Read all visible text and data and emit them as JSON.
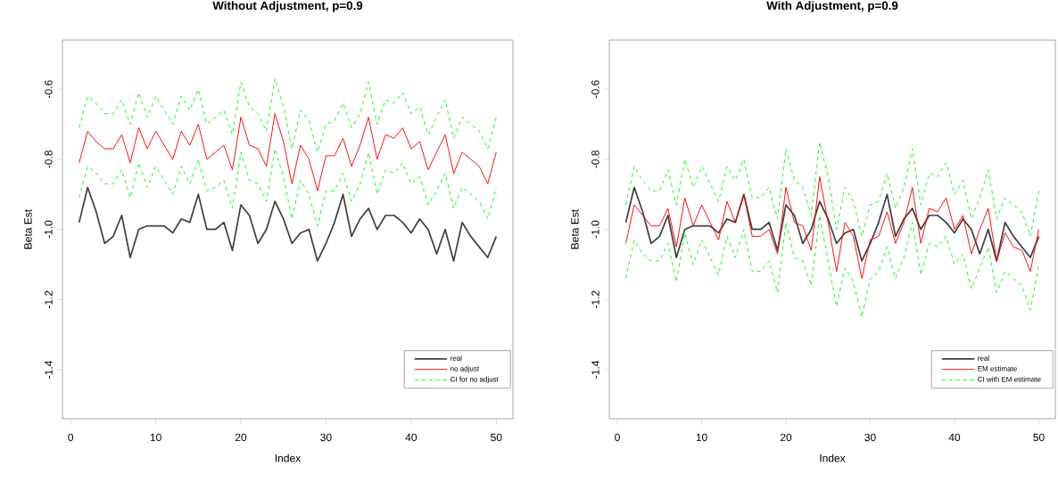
{
  "chart_data": [
    {
      "type": "line",
      "title": "Without Adjustment, p=0.9",
      "xlabel": "Index",
      "ylabel": "Beta Est",
      "x": [
        1,
        2,
        3,
        4,
        5,
        6,
        7,
        8,
        9,
        10,
        11,
        12,
        13,
        14,
        15,
        16,
        17,
        18,
        19,
        20,
        21,
        22,
        23,
        24,
        25,
        26,
        27,
        28,
        29,
        30,
        31,
        32,
        33,
        34,
        35,
        36,
        37,
        38,
        39,
        40,
        41,
        42,
        43,
        44,
        45,
        46,
        47,
        48,
        49,
        50
      ],
      "xlim": [
        -0.96,
        51.96
      ],
      "ylim": [
        -1.54,
        -0.46
      ],
      "xticks": [
        0,
        10,
        20,
        30,
        40,
        50
      ],
      "yticks": [
        {
          "value": -1.4,
          "label": "-1.4"
        },
        {
          "value": -1.2,
          "label": "-1.2"
        },
        {
          "value": -1.0,
          "label": "-1.0"
        },
        {
          "value": -0.8,
          "label": "-0.8"
        },
        {
          "value": -0.6,
          "label": "-0.6"
        }
      ],
      "legend": "bottom right",
      "series": [
        {
          "name": "real",
          "color": "#404040",
          "line_style": "solid",
          "values": [
            -0.98,
            -0.88,
            -0.95,
            -1.04,
            -1.02,
            -0.96,
            -1.08,
            -1.0,
            -0.99,
            -0.99,
            -0.99,
            -1.01,
            -0.97,
            -0.98,
            -0.9,
            -1.0,
            -1.0,
            -0.98,
            -1.06,
            -0.93,
            -0.96,
            -1.04,
            -1.0,
            -0.92,
            -0.97,
            -1.04,
            -1.01,
            -1.0,
            -1.09,
            -1.04,
            -0.98,
            -0.9,
            -1.02,
            -0.97,
            -0.94,
            -1.0,
            -0.96,
            -0.96,
            -0.98,
            -1.01,
            -0.97,
            -1.0,
            -1.07,
            -1.0,
            -1.09,
            -0.98,
            -1.02,
            -1.05,
            -1.08,
            -1.02
          ]
        },
        {
          "name": "no adjust",
          "color": "#ff0000",
          "line_style": "solid",
          "values": [
            -0.81,
            -0.72,
            -0.75,
            -0.77,
            -0.77,
            -0.73,
            -0.81,
            -0.71,
            -0.77,
            -0.72,
            -0.76,
            -0.8,
            -0.72,
            -0.76,
            -0.7,
            -0.8,
            -0.78,
            -0.76,
            -0.83,
            -0.68,
            -0.76,
            -0.77,
            -0.82,
            -0.67,
            -0.75,
            -0.87,
            -0.76,
            -0.8,
            -0.89,
            -0.79,
            -0.79,
            -0.74,
            -0.82,
            -0.76,
            -0.68,
            -0.8,
            -0.73,
            -0.74,
            -0.71,
            -0.77,
            -0.75,
            -0.83,
            -0.78,
            -0.73,
            -0.84,
            -0.78,
            -0.8,
            -0.82,
            -0.87,
            -0.78
          ]
        },
        {
          "name": "CI for no adjust",
          "color": "#00ff00",
          "line_style": "dashed",
          "values": [
            -0.71,
            -0.62,
            -0.64,
            -0.67,
            -0.67,
            -0.63,
            -0.7,
            -0.61,
            -0.68,
            -0.62,
            -0.66,
            -0.7,
            -0.62,
            -0.66,
            -0.6,
            -0.7,
            -0.68,
            -0.66,
            -0.73,
            -0.58,
            -0.65,
            -0.67,
            -0.72,
            -0.57,
            -0.65,
            -0.77,
            -0.66,
            -0.69,
            -0.78,
            -0.7,
            -0.69,
            -0.64,
            -0.71,
            -0.67,
            -0.58,
            -0.7,
            -0.63,
            -0.64,
            -0.61,
            -0.67,
            -0.65,
            -0.73,
            -0.68,
            -0.63,
            -0.74,
            -0.68,
            -0.7,
            -0.72,
            -0.77,
            -0.68
          ]
        },
        {
          "color": "#00ff00",
          "line_style": "dashed",
          "values": [
            -0.91,
            -0.82,
            -0.84,
            -0.87,
            -0.87,
            -0.83,
            -0.91,
            -0.81,
            -0.88,
            -0.82,
            -0.86,
            -0.9,
            -0.82,
            -0.87,
            -0.8,
            -0.89,
            -0.88,
            -0.86,
            -0.94,
            -0.78,
            -0.86,
            -0.87,
            -0.92,
            -0.77,
            -0.85,
            -0.97,
            -0.86,
            -0.9,
            -0.99,
            -0.89,
            -0.89,
            -0.84,
            -0.92,
            -0.87,
            -0.78,
            -0.9,
            -0.83,
            -0.84,
            -0.81,
            -0.87,
            -0.85,
            -0.93,
            -0.89,
            -0.84,
            -0.94,
            -0.88,
            -0.9,
            -0.92,
            -0.97,
            -0.88
          ]
        }
      ]
    },
    {
      "type": "line",
      "title": "With Adjustment, p=0.9",
      "xlabel": "Index",
      "ylabel": "Beta Est",
      "x": [
        1,
        2,
        3,
        4,
        5,
        6,
        7,
        8,
        9,
        10,
        11,
        12,
        13,
        14,
        15,
        16,
        17,
        18,
        19,
        20,
        21,
        22,
        23,
        24,
        25,
        26,
        27,
        28,
        29,
        30,
        31,
        32,
        33,
        34,
        35,
        36,
        37,
        38,
        39,
        40,
        41,
        42,
        43,
        44,
        45,
        46,
        47,
        48,
        49,
        50
      ],
      "xlim": [
        -0.96,
        51.96
      ],
      "ylim": [
        -1.54,
        -0.46
      ],
      "xticks": [
        0,
        10,
        20,
        30,
        40,
        50
      ],
      "yticks": [
        {
          "value": -1.4,
          "label": "-1.4"
        },
        {
          "value": -1.2,
          "label": "-1.2"
        },
        {
          "value": -1.0,
          "label": "-1.0"
        },
        {
          "value": -0.8,
          "label": "-0.8"
        },
        {
          "value": -0.6,
          "label": "-0.6"
        }
      ],
      "legend": "bottom right",
      "series": [
        {
          "name": "real",
          "color": "#404040",
          "line_style": "solid",
          "values": [
            -0.98,
            -0.88,
            -0.95,
            -1.04,
            -1.02,
            -0.96,
            -1.08,
            -1.0,
            -0.99,
            -0.99,
            -0.99,
            -1.01,
            -0.97,
            -0.98,
            -0.9,
            -1.0,
            -1.0,
            -0.98,
            -1.06,
            -0.93,
            -0.96,
            -1.04,
            -1.0,
            -0.92,
            -0.97,
            -1.04,
            -1.01,
            -1.0,
            -1.09,
            -1.04,
            -0.98,
            -0.9,
            -1.02,
            -0.97,
            -0.94,
            -1.0,
            -0.96,
            -0.96,
            -0.98,
            -1.01,
            -0.97,
            -1.0,
            -1.07,
            -1.0,
            -1.09,
            -0.98,
            -1.02,
            -1.05,
            -1.08,
            -1.02
          ]
        },
        {
          "name": "EM estimate",
          "color": "#ff0000",
          "line_style": "solid",
          "values": [
            -1.04,
            -0.93,
            -0.96,
            -0.99,
            -0.99,
            -0.94,
            -1.05,
            -0.91,
            -0.99,
            -0.93,
            -0.98,
            -1.03,
            -0.92,
            -0.98,
            -0.9,
            -1.02,
            -1.02,
            -1.0,
            -1.07,
            -0.88,
            -0.98,
            -0.99,
            -1.06,
            -0.85,
            -0.98,
            -1.12,
            -0.98,
            -1.02,
            -1.14,
            -1.03,
            -1.02,
            -0.95,
            -1.04,
            -0.98,
            -0.88,
            -1.04,
            -0.94,
            -0.95,
            -0.91,
            -1.0,
            -0.96,
            -1.07,
            -1.0,
            -0.94,
            -1.09,
            -1.01,
            -1.05,
            -1.06,
            -1.12,
            -1.0
          ]
        },
        {
          "name": "CI with EM estimate",
          "color": "#00ff00",
          "line_style": "dashed",
          "values": [
            -0.93,
            -0.82,
            -0.86,
            -0.89,
            -0.89,
            -0.83,
            -0.93,
            -0.8,
            -0.88,
            -0.82,
            -0.87,
            -0.92,
            -0.82,
            -0.86,
            -0.8,
            -0.91,
            -0.91,
            -0.88,
            -0.97,
            -0.77,
            -0.86,
            -0.88,
            -0.96,
            -0.75,
            -0.85,
            -1.0,
            -0.88,
            -0.92,
            -1.02,
            -0.93,
            -0.92,
            -0.84,
            -0.94,
            -0.88,
            -0.77,
            -0.93,
            -0.84,
            -0.85,
            -0.81,
            -0.9,
            -0.86,
            -0.97,
            -0.91,
            -0.83,
            -0.97,
            -0.91,
            -0.93,
            -0.95,
            -1.02,
            -0.89
          ]
        },
        {
          "color": "#00ff00",
          "line_style": "dashed",
          "values": [
            -1.14,
            -1.03,
            -1.07,
            -1.09,
            -1.09,
            -1.04,
            -1.15,
            -1.01,
            -1.1,
            -1.03,
            -1.08,
            -1.13,
            -1.02,
            -1.08,
            -1.0,
            -1.12,
            -1.12,
            -1.09,
            -1.18,
            -0.98,
            -1.08,
            -1.09,
            -1.16,
            -0.96,
            -1.09,
            -1.22,
            -1.11,
            -1.15,
            -1.25,
            -1.14,
            -1.12,
            -1.05,
            -1.14,
            -1.08,
            -0.98,
            -1.13,
            -1.04,
            -1.05,
            -1.02,
            -1.1,
            -1.07,
            -1.17,
            -1.11,
            -1.05,
            -1.18,
            -1.12,
            -1.14,
            -1.16,
            -1.23,
            -1.1
          ]
        }
      ]
    }
  ]
}
